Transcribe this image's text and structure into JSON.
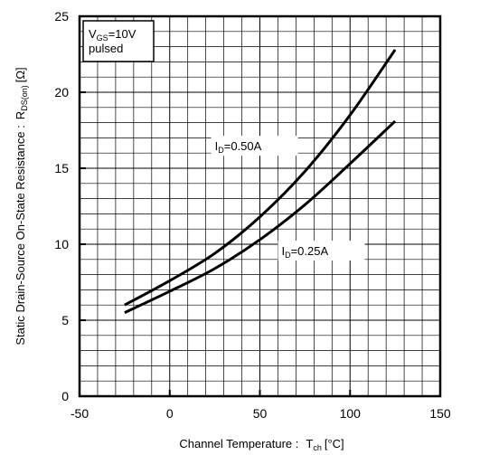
{
  "chart_data": {
    "type": "line",
    "title": "",
    "xlabel": {
      "prefix": "Channel Temperature :",
      "symbol": "T",
      "symbol_sub": "ch",
      "unit": "[°C]"
    },
    "ylabel": {
      "prefix": "Static Drain-Source On-State Resistance :",
      "symbol": "R",
      "symbol_sub": "DS(on)",
      "unit": "[Ω]"
    },
    "xlim": [
      -50,
      150
    ],
    "ylim": [
      0,
      25
    ],
    "x_ticks": [
      -50,
      0,
      50,
      100,
      150
    ],
    "y_ticks": [
      0,
      5,
      10,
      15,
      20,
      25
    ],
    "grid": {
      "vertical_minor": true,
      "horizontal_minor": true
    },
    "condition_box": {
      "symbol": "V",
      "symbol_sub": "GS",
      "value": "=10V",
      "line2": "pulsed"
    },
    "series": [
      {
        "name": {
          "symbol": "I",
          "symbol_sub": "D",
          "value": "=0.50A"
        },
        "x": [
          -25,
          0,
          25,
          50,
          75,
          100,
          125
        ],
        "y": [
          6.0,
          7.6,
          9.4,
          11.8,
          14.8,
          18.5,
          22.8
        ]
      },
      {
        "name": {
          "symbol": "I",
          "symbol_sub": "D",
          "value": "=0.25A"
        },
        "x": [
          -25,
          0,
          25,
          50,
          75,
          100,
          125
        ],
        "y": [
          5.5,
          6.9,
          8.4,
          10.3,
          12.6,
          15.3,
          18.1
        ]
      }
    ]
  }
}
